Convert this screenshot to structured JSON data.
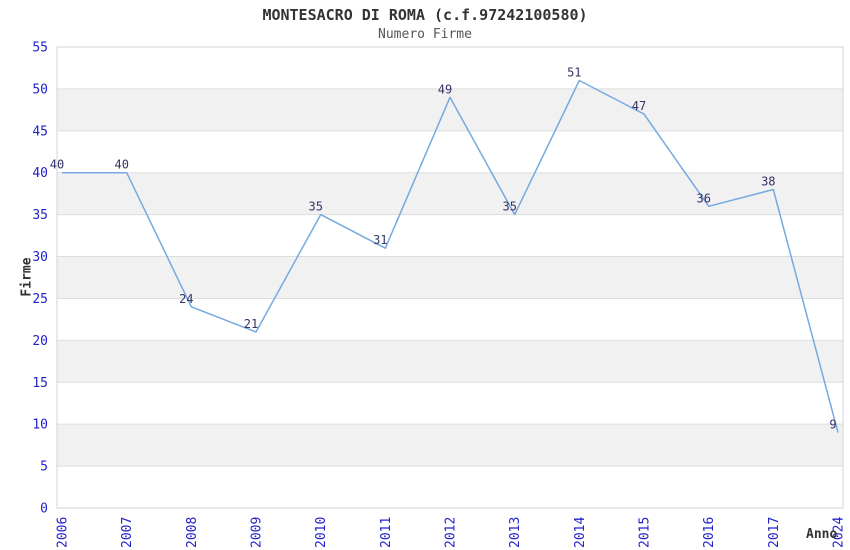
{
  "header": {
    "title": "MONTESACRO DI ROMA (c.f.97242100580)",
    "subtitle": "Numero Firme"
  },
  "chart_data": {
    "type": "line",
    "title": "MONTESACRO DI ROMA (c.f.97242100580)",
    "subtitle": "Numero Firme",
    "xlabel": "Anno",
    "ylabel": "Firme",
    "categories": [
      "2006",
      "2007",
      "2008",
      "2009",
      "2010",
      "2011",
      "2012",
      "2013",
      "2014",
      "2015",
      "2016",
      "2017",
      "2024"
    ],
    "values": [
      40,
      40,
      24,
      21,
      35,
      31,
      49,
      35,
      51,
      47,
      36,
      38,
      9
    ],
    "point_labels": [
      "40",
      "40",
      "24",
      "21",
      "35",
      "31",
      "49",
      "35",
      "51",
      "47",
      "36",
      "38",
      "9"
    ],
    "ylim": [
      0,
      55
    ],
    "ytick_step": 5,
    "yticks": [
      "0",
      "5",
      "10",
      "15",
      "20",
      "25",
      "30",
      "35",
      "40",
      "45",
      "50",
      "55"
    ],
    "grid": true,
    "legend_position": "none",
    "band_pattern": "alternating-horizontal",
    "colors": {
      "line": "#76A9E0",
      "tick_label": "#2222CC",
      "point_label": "#333366",
      "band": "#F1F1F1",
      "gridline": "#DDDDDD",
      "plot_border": "#D3D3D3",
      "title": "#333333",
      "subtitle": "#555555",
      "axis_title": "#333333",
      "background": "#FFFFFF"
    }
  }
}
